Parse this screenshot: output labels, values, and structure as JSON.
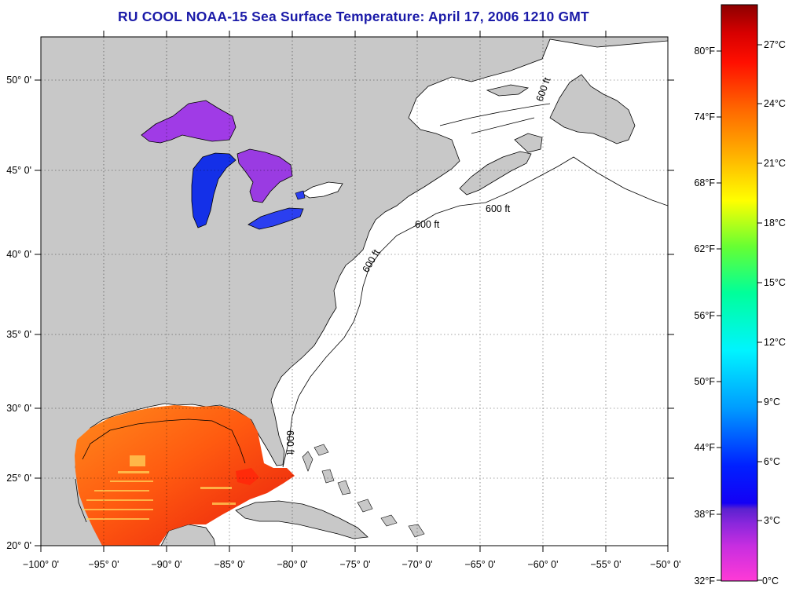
{
  "title": "RU COOL  NOAA-15  Sea Surface Temperature:  April 17, 2006 1210 GMT",
  "map": {
    "lon_range": [
      -100,
      -50
    ],
    "lat_range": [
      20,
      52.5
    ],
    "lat_labels": [
      "50° 0'",
      "45° 0'",
      "40° 0'",
      "35° 0'",
      "30° 0'",
      "25° 0'",
      "20° 0'"
    ],
    "lat_values": [
      50,
      45,
      40,
      35,
      30,
      25,
      20
    ],
    "lon_labels": [
      "−100° 0'",
      "−95° 0'",
      "−90° 0'",
      "−85° 0'",
      "−80° 0'",
      "−75° 0'",
      "−70° 0'",
      "−65° 0'",
      "−60° 0'",
      "−55° 0'",
      "−50° 0'"
    ],
    "lon_values": [
      -100,
      -95,
      -90,
      -85,
      -80,
      -75,
      -70,
      -65,
      -60,
      -55,
      -50
    ],
    "grid": "dotted",
    "contour_label": "600 ft",
    "land_color": "#c8c8c8",
    "ocean_color": "#ffffff",
    "data_regions": [
      {
        "name": "Lake Superior",
        "value_c": 1
      },
      {
        "name": "Lake Michigan",
        "value_c": 4
      },
      {
        "name": "Lake Huron",
        "value_c": 1
      },
      {
        "name": "Lake Erie",
        "value_c": 4
      },
      {
        "name": "Gulf of Mexico",
        "value_c": 24
      }
    ]
  },
  "colorbar": {
    "celsius_labels": [
      "27°C",
      "24°C",
      "21°C",
      "18°C",
      "15°C",
      "12°C",
      "9°C",
      "6°C",
      "3°C",
      "0°C"
    ],
    "celsius_values": [
      27,
      24,
      21,
      18,
      15,
      12,
      9,
      6,
      3,
      0
    ],
    "fahrenheit_labels": [
      "80°F",
      "74°F",
      "68°F",
      "62°F",
      "56°F",
      "50°F",
      "44°F",
      "38°F",
      "32°F"
    ],
    "fahrenheit_values": [
      80,
      74,
      68,
      62,
      56,
      50,
      44,
      38,
      32
    ],
    "min_c": 0,
    "max_c": 28.5,
    "stops": [
      "#ff3ad6",
      "#a326e6",
      "#6b27d8",
      "#0000ff",
      "#00aaff",
      "#00ffff",
      "#00ff99",
      "#66ff33",
      "#ffff00",
      "#ffb000",
      "#ff6600",
      "#ff0000",
      "#dd0000",
      "#8c0000"
    ]
  }
}
